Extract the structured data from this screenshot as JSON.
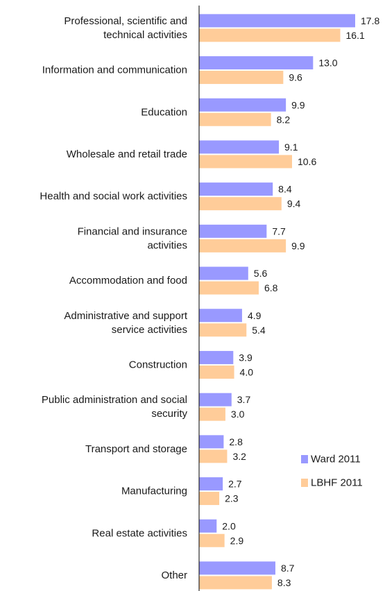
{
  "chart_data": {
    "type": "bar",
    "orientation": "horizontal",
    "categories": [
      [
        "Professional, scientific and",
        "technical activities"
      ],
      [
        "Information and communication"
      ],
      [
        "Education"
      ],
      [
        "Wholesale and retail trade"
      ],
      [
        "Health and social work activities"
      ],
      [
        "Financial and insurance",
        "activities"
      ],
      [
        "Accommodation and food"
      ],
      [
        "Administrative and support",
        "service activities"
      ],
      [
        "Construction"
      ],
      [
        "Public administration and social",
        "security"
      ],
      [
        "Transport and storage"
      ],
      [
        "Manufacturing"
      ],
      [
        "Real estate activities"
      ],
      [
        "Other"
      ]
    ],
    "series": [
      {
        "name": "Ward 2011",
        "color": "#9999ff",
        "values": [
          17.8,
          13.0,
          9.9,
          9.1,
          8.4,
          7.7,
          5.6,
          4.9,
          3.9,
          3.7,
          2.8,
          2.7,
          2.0,
          8.7
        ],
        "labels": [
          "17.8",
          "13.0",
          "9.9",
          "9.1",
          "8.4",
          "7.7",
          "5.6",
          "4.9",
          "3.9",
          "3.7",
          "2.8",
          "2.7",
          "2.0",
          "8.7"
        ]
      },
      {
        "name": "LBHF 2011",
        "color": "#ffcc99",
        "values": [
          16.1,
          9.6,
          8.2,
          10.6,
          9.4,
          9.9,
          6.8,
          5.4,
          4.0,
          3.0,
          3.2,
          2.3,
          2.9,
          8.3
        ],
        "labels": [
          "16.1",
          "9.6",
          "8.2",
          "10.6",
          "9.4",
          "9.9",
          "6.8",
          "5.4",
          "4.0",
          "3.0",
          "3.2",
          "2.3",
          "2.9",
          "8.3"
        ]
      }
    ],
    "legend_position": "right-lower",
    "grid": false
  }
}
